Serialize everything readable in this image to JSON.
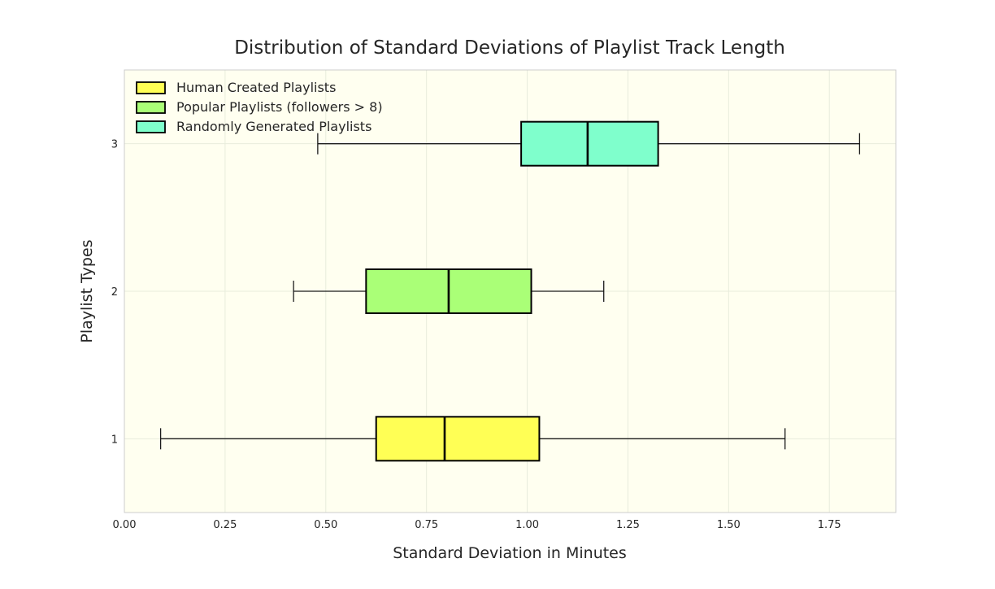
{
  "chart_data": {
    "type": "boxplot",
    "orientation": "horizontal",
    "title": "Distribution of Standard Deviations of Playlist Track Length",
    "xlabel": "Standard Deviation in Minutes",
    "ylabel": "Playlist Types",
    "xlim": [
      0.0,
      1.915
    ],
    "ylim": [
      0.5,
      3.5
    ],
    "xticks": [
      "0.00",
      "0.25",
      "0.50",
      "0.75",
      "1.00",
      "1.25",
      "1.50",
      "1.75"
    ],
    "yticks": [
      "1",
      "2",
      "3"
    ],
    "grid": true,
    "background_color": "#fffff0",
    "legend_position": "top-left",
    "series": [
      {
        "name": "Human Created Playlists",
        "position": 1,
        "whisker_low": 0.09,
        "q1": 0.625,
        "median": 0.795,
        "q3": 1.03,
        "whisker_high": 1.64,
        "color": "#ffff55"
      },
      {
        "name": "Popular Playlists (followers > 8)",
        "position": 2,
        "whisker_low": 0.42,
        "q1": 0.6,
        "median": 0.805,
        "q3": 1.01,
        "whisker_high": 1.19,
        "color": "#aaff77"
      },
      {
        "name": "Randomly Generated Playlists",
        "position": 3,
        "whisker_low": 0.48,
        "q1": 0.985,
        "median": 1.15,
        "q3": 1.325,
        "whisker_high": 1.825,
        "color": "#7fffcc"
      }
    ]
  }
}
